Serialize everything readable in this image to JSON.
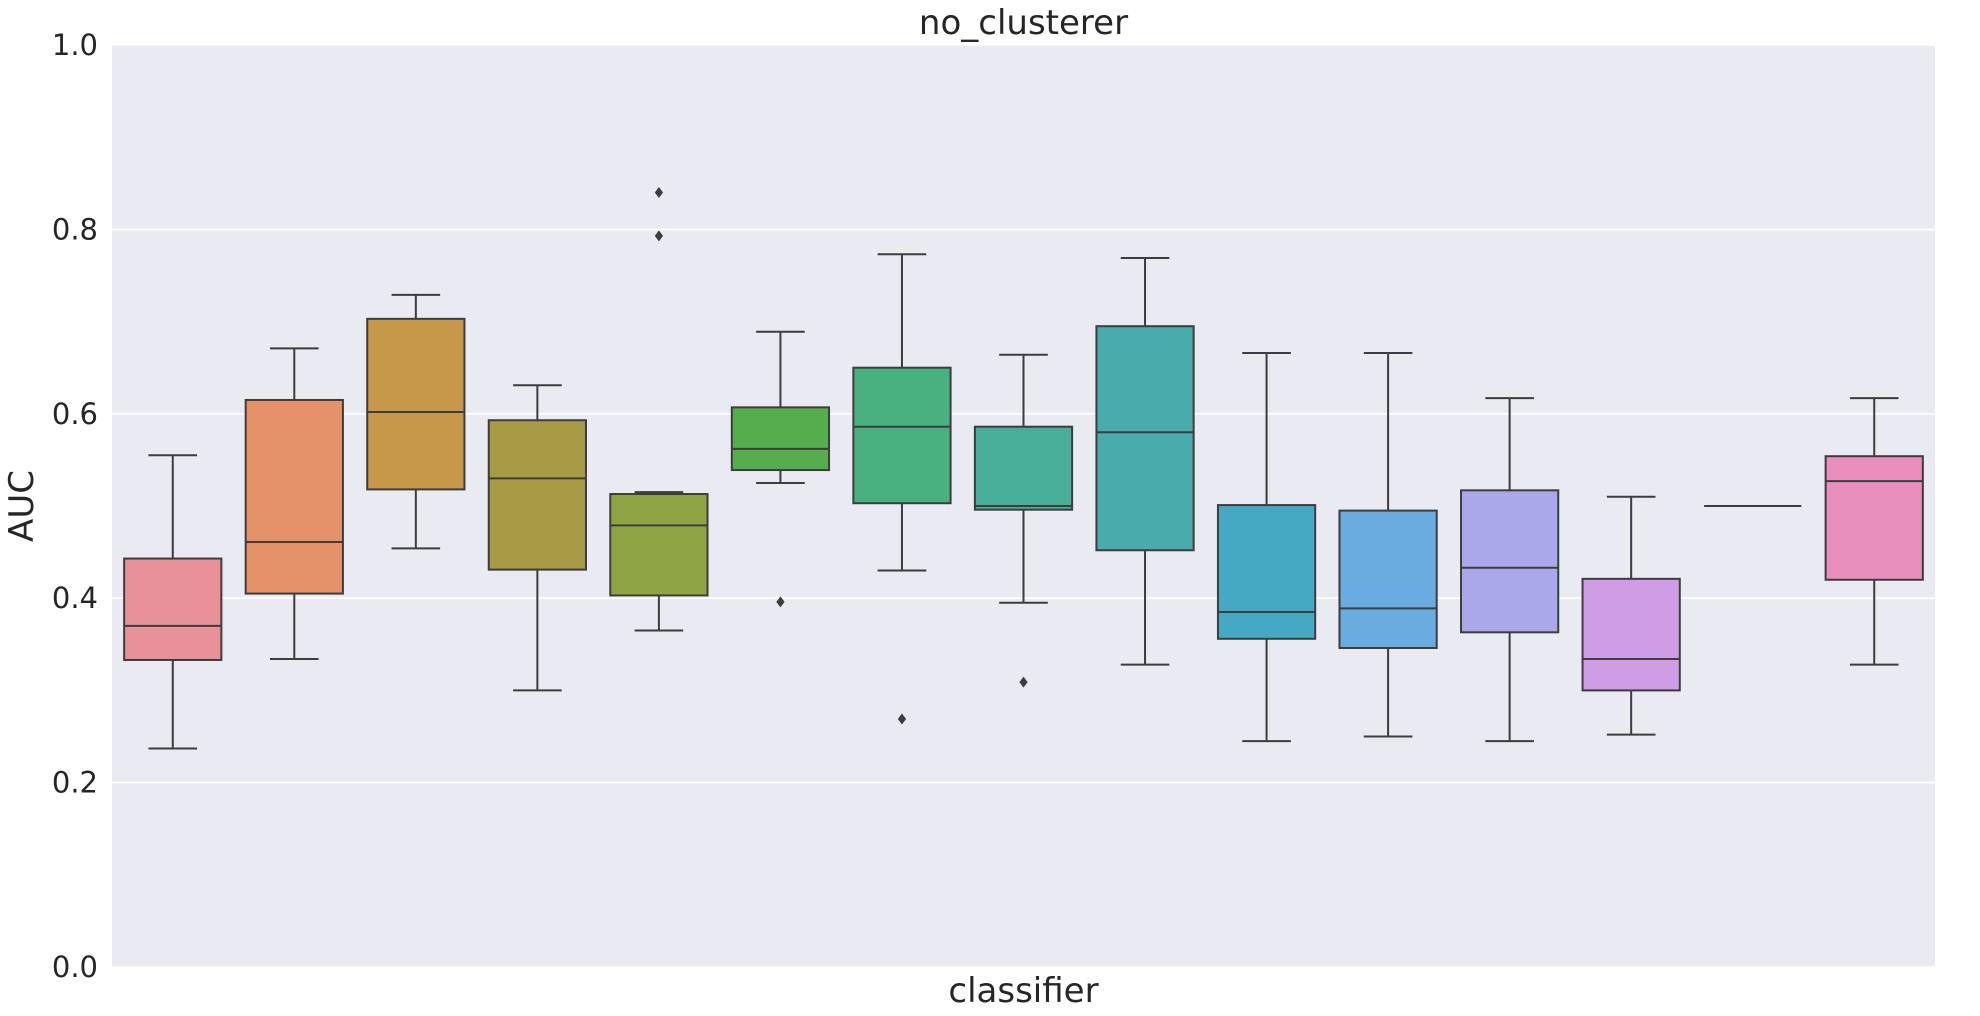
{
  "chart_data": {
    "type": "box",
    "title": "no_clusterer",
    "xlabel": "classifier",
    "ylabel": "AUC",
    "ylim": [
      0,
      1
    ],
    "yticks": [
      "0.0",
      "0.2",
      "0.4",
      "0.6",
      "0.8",
      "1.0"
    ],
    "grid": true,
    "background": "#eaeaf2",
    "series": [
      {
        "color": "#e8919b",
        "whisker_low": 0.237,
        "q1": 0.333,
        "median": 0.37,
        "q3": 0.443,
        "whisker_high": 0.555,
        "outliers": []
      },
      {
        "color": "#e5916a",
        "whisker_low": 0.334,
        "q1": 0.405,
        "median": 0.461,
        "q3": 0.615,
        "whisker_high": 0.671,
        "outliers": []
      },
      {
        "color": "#c7974a",
        "whisker_low": 0.454,
        "q1": 0.518,
        "median": 0.602,
        "q3": 0.703,
        "whisker_high": 0.729,
        "outliers": []
      },
      {
        "color": "#a89b45",
        "whisker_low": 0.3,
        "q1": 0.431,
        "median": 0.53,
        "q3": 0.593,
        "whisker_high": 0.631,
        "outliers": []
      },
      {
        "color": "#8fa445",
        "whisker_low": 0.365,
        "q1": 0.403,
        "median": 0.479,
        "q3": 0.513,
        "whisker_high": 0.515,
        "outliers": [
          0.793,
          0.84
        ]
      },
      {
        "color": "#55ad4e",
        "whisker_low": 0.525,
        "q1": 0.539,
        "median": 0.562,
        "q3": 0.607,
        "whisker_high": 0.689,
        "outliers": [
          0.396
        ]
      },
      {
        "color": "#49b080",
        "whisker_low": 0.43,
        "q1": 0.503,
        "median": 0.586,
        "q3": 0.65,
        "whisker_high": 0.773,
        "outliers": [
          0.269
        ]
      },
      {
        "color": "#48ad99",
        "whisker_low": 0.395,
        "q1": 0.496,
        "median": 0.5,
        "q3": 0.586,
        "whisker_high": 0.664,
        "outliers": [
          0.309
        ]
      },
      {
        "color": "#4aabac",
        "whisker_low": 0.328,
        "q1": 0.452,
        "median": 0.58,
        "q3": 0.695,
        "whisker_high": 0.769,
        "outliers": []
      },
      {
        "color": "#46a9c4",
        "whisker_low": 0.245,
        "q1": 0.356,
        "median": 0.385,
        "q3": 0.501,
        "whisker_high": 0.666,
        "outliers": []
      },
      {
        "color": "#6aace0",
        "whisker_low": 0.25,
        "q1": 0.346,
        "median": 0.389,
        "q3": 0.495,
        "whisker_high": 0.666,
        "outliers": []
      },
      {
        "color": "#aaa8ea",
        "whisker_low": 0.245,
        "q1": 0.363,
        "median": 0.433,
        "q3": 0.517,
        "whisker_high": 0.617,
        "outliers": []
      },
      {
        "color": "#cf9ce6",
        "whisker_low": 0.252,
        "q1": 0.3,
        "median": 0.334,
        "q3": 0.421,
        "whisker_high": 0.51,
        "outliers": []
      },
      {
        "color": "#dc92d6",
        "whisker_low": 0.5,
        "q1": 0.5,
        "median": 0.5,
        "q3": 0.5,
        "whisker_high": 0.5,
        "outliers": []
      },
      {
        "color": "#e88fbe",
        "whisker_low": 0.328,
        "q1": 0.42,
        "median": 0.527,
        "q3": 0.554,
        "whisker_high": 0.617,
        "outliers": []
      }
    ]
  }
}
